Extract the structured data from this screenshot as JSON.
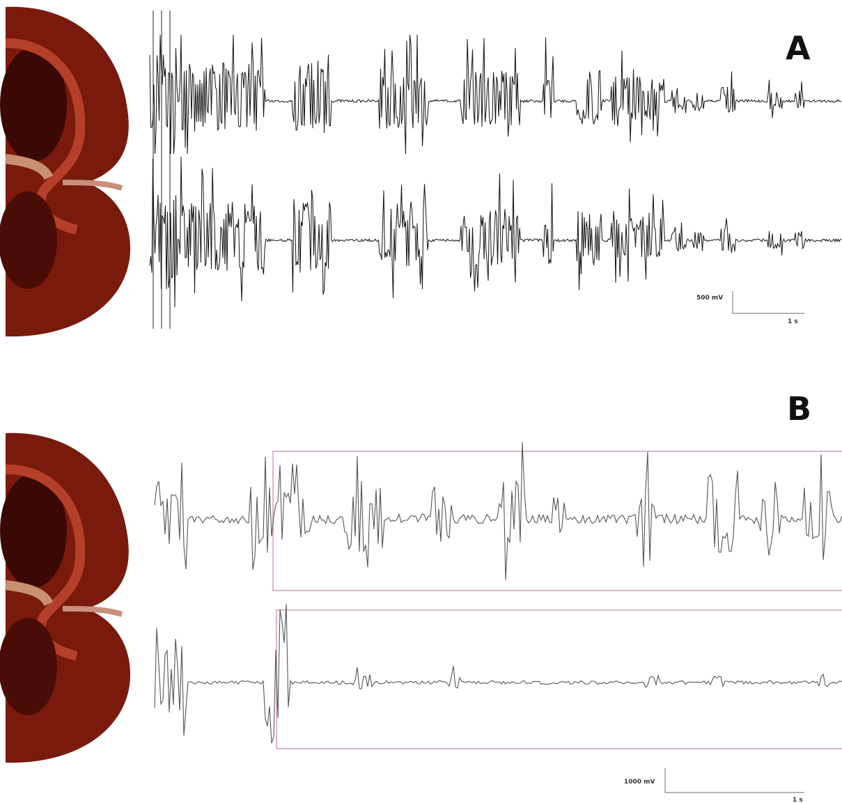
{
  "panels": [
    {
      "label": "A",
      "scale_bar": {
        "amplitude": "500 mV",
        "time": "1 s"
      }
    },
    {
      "label": "B",
      "scale_bar": {
        "amplitude": "1000 mV",
        "time": "1 s"
      }
    }
  ]
}
